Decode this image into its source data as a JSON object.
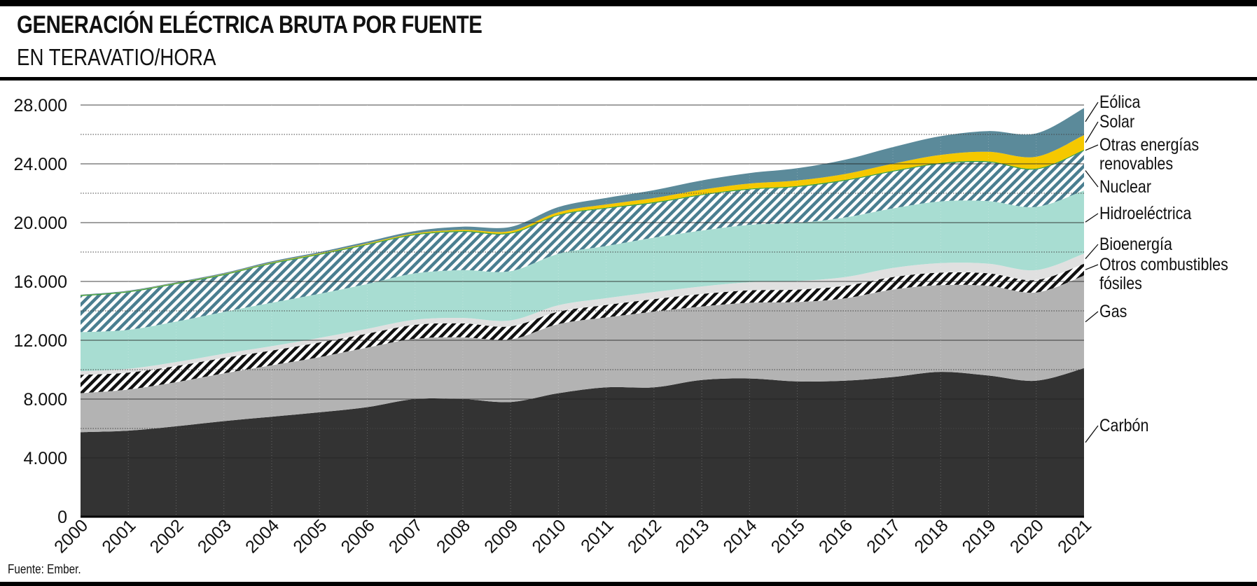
{
  "header": {
    "title": "GENERACIÓN ELÉCTRICA BRUTA POR FUENTE",
    "subtitle": "EN TERAVATIO/HORA"
  },
  "footer": {
    "source": "Fuente: Ember."
  },
  "chart_data": {
    "type": "area",
    "stacked": true,
    "title": "GENERACIÓN ELÉCTRICA BRUTA POR FUENTE",
    "subtitle": "EN TERAVATIO/HORA",
    "xlabel": "",
    "ylabel": "",
    "ylim": [
      0,
      28000
    ],
    "yticks": [
      0,
      4000,
      8000,
      12000,
      16000,
      20000,
      24000,
      28000
    ],
    "ytick_labels": [
      "0",
      "4.000",
      "8.000",
      "12.000",
      "16.000",
      "20.000",
      "24.000",
      "28.000"
    ],
    "x": [
      2000,
      2001,
      2002,
      2003,
      2004,
      2005,
      2006,
      2007,
      2008,
      2009,
      2010,
      2011,
      2012,
      2013,
      2014,
      2015,
      2016,
      2017,
      2018,
      2019,
      2020,
      2021
    ],
    "x_labels": [
      "2000",
      "2001",
      "2002",
      "2003",
      "2004",
      "2005",
      "2006",
      "2007",
      "2008",
      "2009",
      "2010",
      "2011",
      "2012",
      "2013",
      "2014",
      "2015",
      "2016",
      "2017",
      "2018",
      "2019",
      "2020",
      "2021"
    ],
    "grid": "horizontal",
    "legend_position": "right",
    "series": [
      {
        "name": "Carbón",
        "color": "#333333",
        "values": [
          5750,
          5850,
          6150,
          6500,
          6800,
          7100,
          7450,
          8000,
          8000,
          7800,
          8400,
          8800,
          8800,
          9300,
          9400,
          9200,
          9250,
          9500,
          9850,
          9600,
          9250,
          10100
        ]
      },
      {
        "name": "Gas",
        "color": "#b3b3b3",
        "values": [
          2650,
          2800,
          3000,
          3250,
          3500,
          3750,
          4050,
          4100,
          4200,
          4250,
          4700,
          4750,
          5150,
          5000,
          5150,
          5400,
          5600,
          5950,
          5900,
          6100,
          6000,
          6300
        ]
      },
      {
        "name": "Otros combustibles fósiles",
        "color": "#111111",
        "pattern": "stripes-black",
        "values": [
          1250,
          1150,
          1100,
          1050,
          1000,
          1000,
          950,
          950,
          950,
          900,
          850,
          850,
          850,
          850,
          850,
          850,
          850,
          850,
          850,
          850,
          850,
          800
        ]
      },
      {
        "name": "Bioenergía",
        "color": "#e0e0e0",
        "values": [
          250,
          260,
          270,
          280,
          300,
          310,
          330,
          350,
          370,
          400,
          430,
          460,
          480,
          510,
          550,
          580,
          600,
          620,
          650,
          660,
          670,
          690
        ]
      },
      {
        "name": "Hidroeléctrica",
        "color": "#a8ddd2",
        "values": [
          2650,
          2650,
          2750,
          2850,
          2950,
          3000,
          3050,
          3150,
          3250,
          3350,
          3500,
          3550,
          3700,
          3800,
          3900,
          3950,
          4050,
          4050,
          4200,
          4250,
          4300,
          4300
        ]
      },
      {
        "name": "Nuclear",
        "color": "#4a7e90",
        "pattern": "stripes-blue",
        "values": [
          2450,
          2550,
          2550,
          2500,
          2650,
          2650,
          2650,
          2600,
          2600,
          2550,
          2600,
          2550,
          2350,
          2400,
          2400,
          2450,
          2500,
          2500,
          2550,
          2650,
          2550,
          2700
        ]
      },
      {
        "name": "Otras energías renovables",
        "color": "#2e9b3a",
        "values": [
          60,
          60,
          60,
          60,
          60,
          60,
          60,
          60,
          60,
          60,
          60,
          60,
          60,
          60,
          60,
          60,
          60,
          60,
          60,
          60,
          60,
          60
        ]
      },
      {
        "name": "Solar",
        "color": "#f5c800",
        "values": [
          10,
          15,
          20,
          25,
          30,
          40,
          50,
          60,
          80,
          120,
          170,
          220,
          280,
          320,
          350,
          380,
          400,
          480,
          550,
          650,
          800,
          1000
        ]
      },
      {
        "name": "Eólica",
        "color": "#5b8a9a",
        "values": [
          30,
          40,
          50,
          60,
          80,
          90,
          120,
          160,
          220,
          280,
          350,
          440,
          540,
          630,
          710,
          830,
          970,
          1130,
          1270,
          1410,
          1590,
          1840
        ]
      }
    ],
    "legend_labels": [
      {
        "series": "Eólica",
        "lines": [
          "Eólica"
        ]
      },
      {
        "series": "Solar",
        "lines": [
          "Solar"
        ]
      },
      {
        "series": "Otras energías renovables",
        "lines": [
          "Otras energías",
          "renovables"
        ]
      },
      {
        "series": "Nuclear",
        "lines": [
          "Nuclear"
        ]
      },
      {
        "series": "Hidroeléctrica",
        "lines": [
          "Hidroeléctrica"
        ]
      },
      {
        "series": "Bioenergía",
        "lines": [
          "Bioenergía"
        ]
      },
      {
        "series": "Otros combustibles fósiles",
        "lines": [
          "Otros combustibles",
          "fósiles"
        ]
      },
      {
        "series": "Gas",
        "lines": [
          "Gas"
        ]
      },
      {
        "series": "Carbón",
        "lines": [
          "Carbón"
        ]
      }
    ]
  }
}
